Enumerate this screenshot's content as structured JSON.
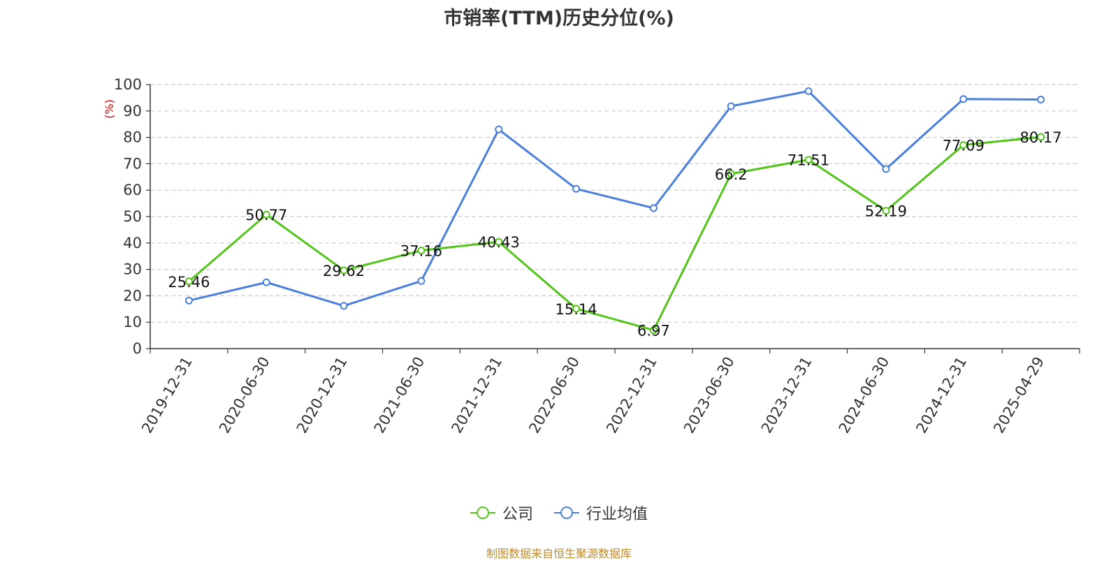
{
  "chart_data": {
    "type": "line",
    "title": "市销率(TTM)历史分位(%)",
    "ylabel": "(%)",
    "xlabel": "",
    "ylim": [
      0,
      100
    ],
    "yticks": [
      0,
      10,
      20,
      30,
      40,
      50,
      60,
      70,
      80,
      90,
      100
    ],
    "grid": true,
    "legend_position": "bottom",
    "categories": [
      "2019-12-31",
      "2020-06-30",
      "2020-12-31",
      "2021-06-30",
      "2021-12-31",
      "2022-06-30",
      "2022-12-31",
      "2023-06-30",
      "2023-12-31",
      "2024-06-30",
      "2024-12-31",
      "2025-04-29"
    ],
    "series": [
      {
        "name": "公司",
        "color": "#52c41a",
        "show_labels": true,
        "values": [
          25.46,
          50.77,
          29.62,
          37.16,
          40.43,
          15.14,
          6.97,
          66.2,
          71.51,
          52.19,
          77.09,
          80.17
        ]
      },
      {
        "name": "行业均值",
        "color": "#4a7fdc",
        "show_labels": false,
        "values": [
          18.2,
          25.1,
          16.2,
          25.6,
          83.0,
          60.5,
          53.2,
          91.8,
          97.5,
          68.0,
          94.5,
          94.3
        ]
      }
    ]
  },
  "source_note": "制图数据来自恒生聚源数据库"
}
